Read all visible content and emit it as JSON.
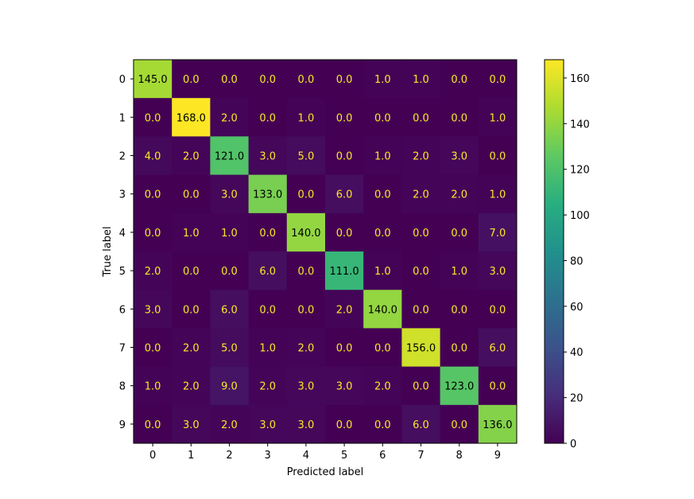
{
  "chart_data": {
    "type": "heatmap",
    "title": "",
    "xlabel": "Predicted label",
    "ylabel": "True label",
    "x_categories": [
      "0",
      "1",
      "2",
      "3",
      "4",
      "5",
      "6",
      "7",
      "8",
      "9"
    ],
    "y_categories": [
      "0",
      "1",
      "2",
      "3",
      "4",
      "5",
      "6",
      "7",
      "8",
      "9"
    ],
    "values": [
      [
        145,
        0,
        0,
        0,
        0,
        0,
        1,
        1,
        0,
        0
      ],
      [
        0,
        168,
        2,
        0,
        1,
        0,
        0,
        0,
        0,
        1
      ],
      [
        4,
        2,
        121,
        3,
        5,
        0,
        1,
        2,
        3,
        0
      ],
      [
        0,
        0,
        3,
        133,
        0,
        6,
        0,
        2,
        2,
        1
      ],
      [
        0,
        1,
        1,
        0,
        140,
        0,
        0,
        0,
        0,
        7
      ],
      [
        2,
        0,
        0,
        6,
        0,
        111,
        1,
        0,
        1,
        3
      ],
      [
        3,
        0,
        6,
        0,
        0,
        2,
        140,
        0,
        0,
        0
      ],
      [
        0,
        2,
        5,
        1,
        2,
        0,
        0,
        156,
        0,
        6
      ],
      [
        1,
        2,
        9,
        2,
        3,
        3,
        2,
        0,
        123,
        0
      ],
      [
        0,
        3,
        2,
        3,
        3,
        0,
        0,
        6,
        0,
        136
      ]
    ],
    "cell_text": [
      [
        "145.0",
        "0.0",
        "0.0",
        "0.0",
        "0.0",
        "0.0",
        "1.0",
        "1.0",
        "0.0",
        "0.0"
      ],
      [
        "0.0",
        "168.0",
        "2.0",
        "0.0",
        "1.0",
        "0.0",
        "0.0",
        "0.0",
        "0.0",
        "1.0"
      ],
      [
        "4.0",
        "2.0",
        "121.0",
        "3.0",
        "5.0",
        "0.0",
        "1.0",
        "2.0",
        "3.0",
        "0.0"
      ],
      [
        "0.0",
        "0.0",
        "3.0",
        "133.0",
        "0.0",
        "6.0",
        "0.0",
        "2.0",
        "2.0",
        "1.0"
      ],
      [
        "0.0",
        "1.0",
        "1.0",
        "0.0",
        "140.0",
        "0.0",
        "0.0",
        "0.0",
        "0.0",
        "7.0"
      ],
      [
        "2.0",
        "0.0",
        "0.0",
        "6.0",
        "0.0",
        "111.0",
        "1.0",
        "0.0",
        "1.0",
        "3.0"
      ],
      [
        "3.0",
        "0.0",
        "6.0",
        "0.0",
        "0.0",
        "2.0",
        "140.0",
        "0.0",
        "0.0",
        "0.0"
      ],
      [
        "0.0",
        "2.0",
        "5.0",
        "1.0",
        "2.0",
        "0.0",
        "0.0",
        "156.0",
        "0.0",
        "6.0"
      ],
      [
        "1.0",
        "2.0",
        "9.0",
        "2.0",
        "3.0",
        "3.0",
        "2.0",
        "0.0",
        "123.0",
        "0.0"
      ],
      [
        "0.0",
        "3.0",
        "2.0",
        "3.0",
        "3.0",
        "0.0",
        "0.0",
        "6.0",
        "0.0",
        "136.0"
      ]
    ],
    "colormap": "viridis",
    "vmin": 0,
    "vmax": 168,
    "colorbar_ticks": [
      "0",
      "20",
      "40",
      "60",
      "80",
      "100",
      "120",
      "140",
      "160"
    ],
    "text_color_dark": "#000000",
    "text_color_light": "#FDE725",
    "grid": false,
    "legend": "colorbar-right"
  }
}
